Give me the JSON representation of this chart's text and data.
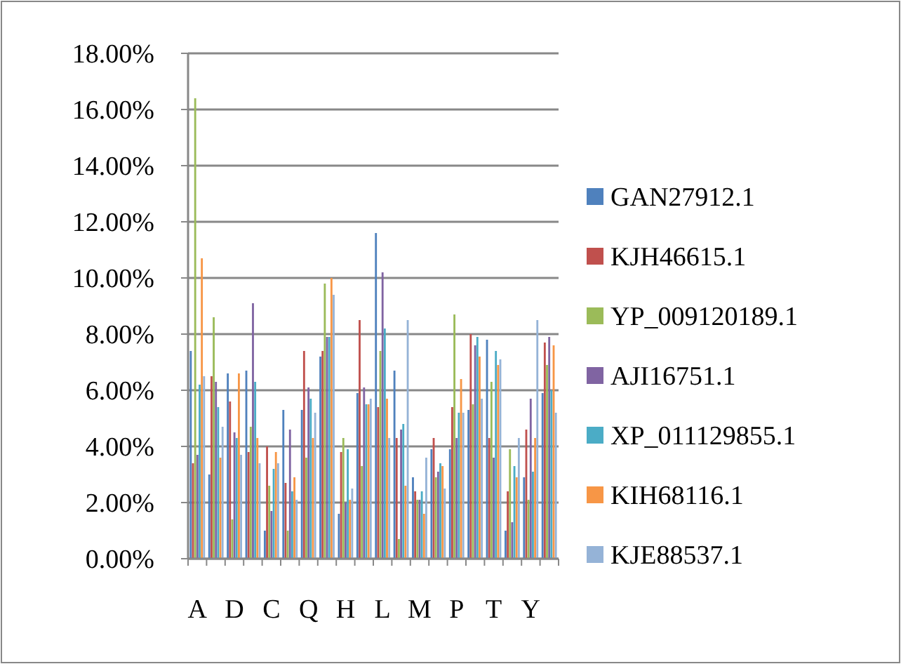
{
  "chart_data": {
    "type": "bar",
    "categories": [
      "A",
      null,
      "D",
      null,
      "C",
      null,
      "Q",
      null,
      "H",
      null,
      "L",
      null,
      "M",
      null,
      "P",
      null,
      "T",
      null,
      "Y",
      null
    ],
    "series": [
      {
        "name": "GAN27912.1",
        "color": "#4f81bd",
        "values": [
          7.4,
          3.0,
          6.6,
          6.7,
          1.0,
          5.3,
          5.3,
          7.2,
          1.6,
          5.9,
          11.6,
          6.7,
          2.9,
          3.9,
          3.9,
          5.3,
          7.8,
          1.0,
          2.9,
          5.9
        ]
      },
      {
        "name": "KJH46615.1",
        "color": "#c0504d",
        "values": [
          3.4,
          6.5,
          5.6,
          3.8,
          4.0,
          2.7,
          7.4,
          7.4,
          3.8,
          8.5,
          5.4,
          4.3,
          2.4,
          4.3,
          5.4,
          8.0,
          4.3,
          2.4,
          4.6,
          7.7
        ]
      },
      {
        "name": "YP_009120189.1",
        "color": "#9bbb59",
        "values": [
          16.4,
          8.6,
          1.4,
          4.7,
          2.6,
          1.0,
          3.6,
          9.8,
          4.3,
          3.3,
          7.4,
          0.7,
          2.1,
          2.9,
          8.7,
          5.5,
          6.3,
          3.9,
          2.1,
          6.9
        ]
      },
      {
        "name": "AJI16751.1",
        "color": "#8064a2",
        "values": [
          3.7,
          6.3,
          4.5,
          9.1,
          1.7,
          4.6,
          6.1,
          7.9,
          2.0,
          6.1,
          10.2,
          4.6,
          2.1,
          3.1,
          4.3,
          7.6,
          3.6,
          1.3,
          5.7,
          7.9
        ]
      },
      {
        "name": "XP_011129855.1",
        "color": "#4bacc6",
        "values": [
          6.2,
          5.4,
          4.3,
          6.3,
          3.2,
          2.4,
          5.7,
          7.9,
          3.9,
          5.5,
          8.2,
          4.8,
          2.4,
          3.4,
          5.2,
          7.9,
          7.4,
          3.3,
          3.1,
          6.0
        ]
      },
      {
        "name": "KIH68116.1",
        "color": "#f79646",
        "values": [
          10.7,
          3.6,
          6.6,
          4.3,
          3.8,
          2.9,
          4.3,
          10.0,
          2.1,
          5.5,
          5.7,
          2.6,
          1.6,
          3.3,
          6.4,
          7.2,
          6.9,
          2.9,
          4.3,
          7.6
        ]
      },
      {
        "name": "KJE88537.1",
        "color": "#95b3d7",
        "values": [
          6.5,
          4.7,
          3.7,
          3.4,
          3.4,
          2.1,
          5.2,
          9.4,
          2.5,
          5.7,
          4.3,
          8.5,
          3.6,
          2.5,
          5.2,
          5.7,
          7.1,
          4.3,
          8.5,
          5.2
        ]
      }
    ],
    "ylim": [
      0,
      18
    ],
    "yticks": [
      {
        "value": 0,
        "label": "0.00%"
      },
      {
        "value": 2,
        "label": "2.00%"
      },
      {
        "value": 4,
        "label": "4.00%"
      },
      {
        "value": 6,
        "label": "6.00%"
      },
      {
        "value": 8,
        "label": "8.00%"
      },
      {
        "value": 10,
        "label": "10.00%"
      },
      {
        "value": 12,
        "label": "12.00%"
      },
      {
        "value": 14,
        "label": "14.00%"
      },
      {
        "value": 16,
        "label": "16.00%"
      },
      {
        "value": 18,
        "label": "18.00%"
      }
    ],
    "grid": "y",
    "legend": "right"
  }
}
